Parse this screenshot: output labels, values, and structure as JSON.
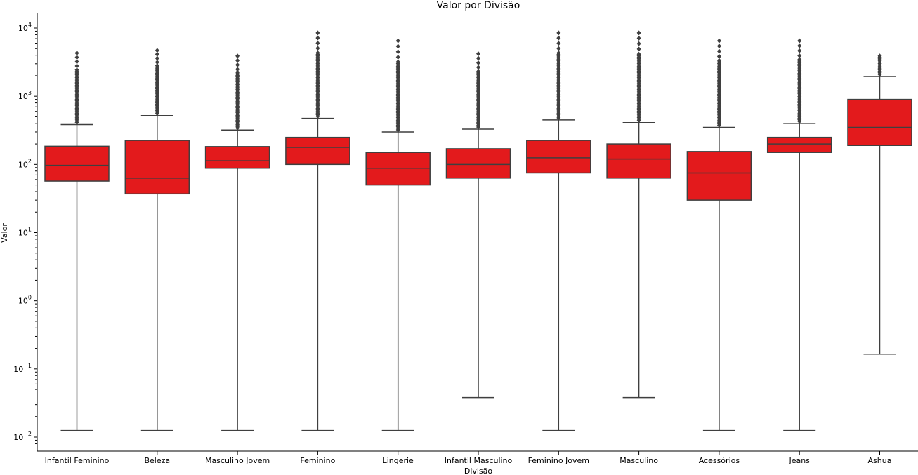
{
  "chart_data": {
    "type": "boxplot",
    "title": "Valor por Divisão",
    "xlabel": "Divisão",
    "ylabel": "Valor",
    "yscale": "log",
    "ylim": [
      0.008,
      20000
    ],
    "y_ticks": [
      {
        "base": "10",
        "exp": "−2",
        "value": 0.01
      },
      {
        "base": "10",
        "exp": "−1",
        "value": 0.1
      },
      {
        "base": "10",
        "exp": "0",
        "value": 1
      },
      {
        "base": "10",
        "exp": "1",
        "value": 10
      },
      {
        "base": "10",
        "exp": "2",
        "value": 100
      },
      {
        "base": "10",
        "exp": "3",
        "value": 1000
      },
      {
        "base": "10",
        "exp": "4",
        "value": 10000
      }
    ],
    "box_color": "#e31a1c",
    "line_color": "#3f3f3f",
    "categories": [
      {
        "name": "Infantil Feminino",
        "whislo": 0.0125,
        "q1": 57,
        "med": 97,
        "q3": 185,
        "whishi": 385,
        "fliers_max": 4300
      },
      {
        "name": "Beleza",
        "whislo": 0.0125,
        "q1": 37,
        "med": 63,
        "q3": 225,
        "whishi": 520,
        "fliers_max": 4700
      },
      {
        "name": "Masculino Jovem",
        "whislo": 0.0125,
        "q1": 88,
        "med": 113,
        "q3": 183,
        "whishi": 320,
        "fliers_max": 3900
      },
      {
        "name": "Feminino",
        "whislo": 0.0125,
        "q1": 100,
        "med": 178,
        "q3": 250,
        "whishi": 475,
        "fliers_max": 8500
      },
      {
        "name": "Lingerie",
        "whislo": 0.0125,
        "q1": 50,
        "med": 88,
        "q3": 150,
        "whishi": 300,
        "fliers_max": 6500
      },
      {
        "name": "Infantil Masculino",
        "whislo": 0.038,
        "q1": 63,
        "med": 100,
        "q3": 170,
        "whishi": 330,
        "fliers_max": 4200
      },
      {
        "name": "Feminino Jovem",
        "whislo": 0.0125,
        "q1": 75,
        "med": 125,
        "q3": 225,
        "whishi": 450,
        "fliers_max": 8500
      },
      {
        "name": "Masculino",
        "whislo": 0.038,
        "q1": 63,
        "med": 120,
        "q3": 200,
        "whishi": 410,
        "fliers_max": 8500
      },
      {
        "name": "Acessórios",
        "whislo": 0.0125,
        "q1": 30,
        "med": 75,
        "q3": 155,
        "whishi": 350,
        "fliers_max": 6500
      },
      {
        "name": "Jeans",
        "whislo": 0.0125,
        "q1": 150,
        "med": 200,
        "q3": 250,
        "whishi": 400,
        "fliers_max": 6500
      },
      {
        "name": "Ashua",
        "whislo": 0.165,
        "q1": 190,
        "med": 350,
        "q3": 900,
        "whishi": 1950,
        "fliers_max": 3900
      }
    ]
  }
}
